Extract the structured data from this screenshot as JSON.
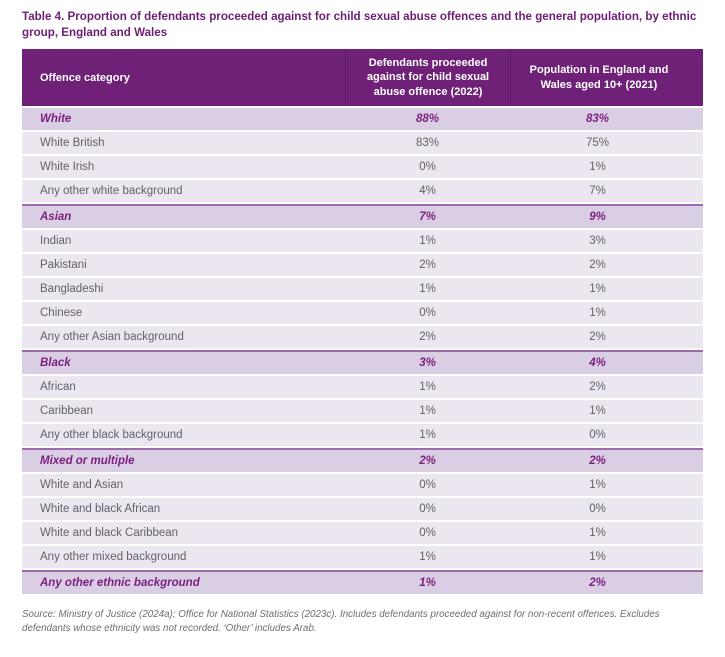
{
  "title": "Table 4. Proportion of defendants proceeded against for child sexual abuse offences and the general population, by ethnic group, England and Wales",
  "colors": {
    "header_bg": "#6F2077",
    "header_text": "#FFFFFF",
    "group_row_bg": "#D9CEE4",
    "row_bg": "#ECE6F1",
    "group_border": "#9D6BAC",
    "accent_purple": "#7B1F7E",
    "title_purple": "#6E2077",
    "body_text": "#626262",
    "source_text": "#6D6D6D"
  },
  "table": {
    "columns": [
      "Offence category",
      "Defendants proceeded against for child sexual abuse offence (2022)",
      "Population in England and Wales aged 10+ (2021)"
    ],
    "rows": [
      {
        "label": "White",
        "group": true,
        "defendants": "88%",
        "population": "83%"
      },
      {
        "label": "White British",
        "group": false,
        "defendants": "83%",
        "population": "75%"
      },
      {
        "label": "White Irish",
        "group": false,
        "defendants": "0%",
        "population": "1%"
      },
      {
        "label": "Any other white background",
        "group": false,
        "defendants": "4%",
        "population": "7%"
      },
      {
        "label": "Asian",
        "group": true,
        "defendants": "7%",
        "population": "9%"
      },
      {
        "label": "Indian",
        "group": false,
        "defendants": "1%",
        "population": "3%"
      },
      {
        "label": "Pakistani",
        "group": false,
        "defendants": "2%",
        "population": "2%"
      },
      {
        "label": "Bangladeshi",
        "group": false,
        "defendants": "1%",
        "population": "1%"
      },
      {
        "label": "Chinese",
        "group": false,
        "defendants": "0%",
        "population": "1%"
      },
      {
        "label": "Any other Asian background",
        "group": false,
        "defendants": "2%",
        "population": "2%"
      },
      {
        "label": "Black",
        "group": true,
        "defendants": "3%",
        "population": "4%"
      },
      {
        "label": "African",
        "group": false,
        "defendants": "1%",
        "population": "2%"
      },
      {
        "label": "Caribbean",
        "group": false,
        "defendants": "1%",
        "population": "1%"
      },
      {
        "label": "Any other black background",
        "group": false,
        "defendants": "1%",
        "population": "0%"
      },
      {
        "label": "Mixed or multiple",
        "group": true,
        "defendants": "2%",
        "population": "2%"
      },
      {
        "label": "White and Asian",
        "group": false,
        "defendants": "0%",
        "population": "1%"
      },
      {
        "label": "White and black African",
        "group": false,
        "defendants": "0%",
        "population": "0%"
      },
      {
        "label": "White and black Caribbean",
        "group": false,
        "defendants": "0%",
        "population": "1%"
      },
      {
        "label": "Any other mixed background",
        "group": false,
        "defendants": "1%",
        "population": "1%"
      },
      {
        "label": "Any other ethnic background",
        "group": true,
        "defendants": "1%",
        "population": "2%"
      }
    ]
  },
  "source": "Source: Ministry of Justice (2024a); Office for National Statistics (2023c). Includes defendants proceeded against for non-recent offences. Excludes defendants whose ethnicity was not recorded. ‘Other’ includes Arab."
}
